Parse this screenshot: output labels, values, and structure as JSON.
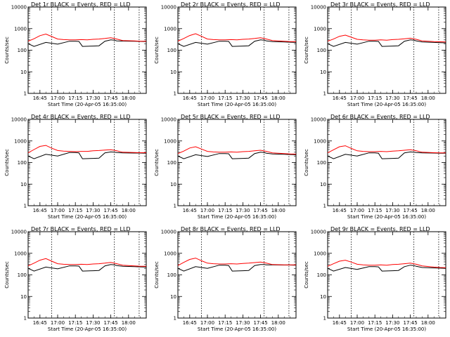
{
  "chart_data": [
    {
      "type": "line",
      "title": "Det 1r BLACK = Events, RED = LLD",
      "xlabel": "Start Time (20-Apr-05 16:35:00)",
      "ylabel": "Counts/sec",
      "yscale": "log",
      "ylim": [
        1,
        10000
      ],
      "x_ticks": [
        "16:45",
        "17:00",
        "17:15",
        "17:30",
        "17:45",
        "18:00"
      ],
      "y_ticks": [
        "1",
        "10",
        "100",
        "1000",
        "10000"
      ],
      "vlines": [
        "16:55",
        "17:48",
        "18:09"
      ],
      "series": [
        {
          "color": "#000000",
          "x_min": [
            0,
            5,
            15,
            25,
            35,
            40,
            43,
            46,
            55,
            60,
            65,
            70,
            73,
            75,
            80,
            90,
            95,
            100
          ],
          "values": [
            200,
            150,
            230,
            190,
            260,
            260,
            255,
            150,
            155,
            160,
            260,
            300,
            290,
            270,
            265,
            260,
            255,
            250
          ]
        },
        {
          "color": "#ff0000",
          "x_min": [
            0,
            5,
            10,
            15,
            20,
            25,
            30,
            35,
            40,
            45,
            50,
            55,
            60,
            65,
            70,
            75,
            80,
            90,
            95,
            100
          ],
          "values": [
            260,
            340,
            470,
            560,
            430,
            330,
            310,
            300,
            300,
            310,
            300,
            320,
            330,
            350,
            380,
            330,
            280,
            270,
            260,
            260
          ]
        }
      ]
    },
    {
      "type": "line",
      "title": "Det 2r BLACK = Events, RED = LLD",
      "xlabel": "Start Time (20-Apr-05 16:35:00)",
      "ylabel": "Counts/sec",
      "yscale": "log",
      "ylim": [
        1,
        10000
      ],
      "x_ticks": [
        "16:45",
        "17:00",
        "17:15",
        "17:30",
        "17:45",
        "18:00"
      ],
      "y_ticks": [
        "1",
        "10",
        "100",
        "1000",
        "10000"
      ],
      "vlines": [
        "16:55",
        "17:48",
        "18:09"
      ],
      "series": [
        {
          "color": "#000000",
          "x_min": [
            0,
            5,
            15,
            25,
            35,
            40,
            43,
            46,
            55,
            60,
            65,
            70,
            73,
            75,
            80,
            90,
            95,
            100
          ],
          "values": [
            200,
            150,
            230,
            190,
            260,
            260,
            255,
            150,
            155,
            160,
            260,
            300,
            290,
            270,
            250,
            240,
            235,
            230
          ]
        },
        {
          "color": "#ff0000",
          "x_min": [
            0,
            5,
            10,
            15,
            20,
            25,
            30,
            35,
            40,
            45,
            50,
            55,
            60,
            65,
            70,
            75,
            80,
            90,
            95,
            100
          ],
          "values": [
            260,
            350,
            480,
            580,
            440,
            330,
            310,
            300,
            300,
            310,
            300,
            320,
            330,
            350,
            380,
            330,
            280,
            260,
            250,
            250
          ]
        }
      ]
    },
    {
      "type": "line",
      "title": "Det 3r BLACK = Events, RED = LLD",
      "xlabel": "Start Time (20-Apr-05 16:35:00)",
      "ylabel": "Counts/sec",
      "yscale": "log",
      "ylim": [
        1,
        10000
      ],
      "x_ticks": [
        "16:45",
        "17:00",
        "17:15",
        "17:30",
        "17:45",
        "18:00"
      ],
      "y_ticks": [
        "1",
        "10",
        "100",
        "1000",
        "10000"
      ],
      "vlines": [
        "16:55",
        "17:48",
        "18:09"
      ],
      "series": [
        {
          "color": "#000000",
          "x_min": [
            0,
            5,
            15,
            25,
            35,
            40,
            43,
            46,
            55,
            60,
            65,
            70,
            73,
            75,
            80,
            90,
            95,
            100
          ],
          "values": [
            200,
            150,
            230,
            190,
            260,
            260,
            255,
            150,
            155,
            160,
            260,
            300,
            290,
            270,
            240,
            230,
            225,
            220
          ]
        },
        {
          "color": "#ff0000",
          "x_min": [
            0,
            5,
            10,
            15,
            20,
            25,
            30,
            35,
            40,
            45,
            50,
            55,
            60,
            65,
            70,
            75,
            80,
            90,
            95,
            100
          ],
          "values": [
            260,
            330,
            440,
            500,
            400,
            320,
            300,
            290,
            290,
            300,
            290,
            310,
            320,
            340,
            360,
            320,
            270,
            250,
            245,
            240
          ]
        }
      ]
    },
    {
      "type": "line",
      "title": "Det 4r BLACK = Events, RED = LLD",
      "xlabel": "Start Time (20-Apr-05 16:35:00)",
      "ylabel": "Counts/sec",
      "yscale": "log",
      "ylim": [
        1,
        10000
      ],
      "x_ticks": [
        "16:45",
        "17:00",
        "17:15",
        "17:30",
        "17:45",
        "18:00"
      ],
      "y_ticks": [
        "1",
        "10",
        "100",
        "1000",
        "10000"
      ],
      "vlines": [
        "16:55",
        "17:48",
        "18:09"
      ],
      "series": [
        {
          "color": "#000000",
          "x_min": [
            0,
            5,
            15,
            25,
            35,
            40,
            43,
            46,
            55,
            60,
            65,
            70,
            73,
            75,
            80,
            90,
            95,
            100
          ],
          "values": [
            200,
            150,
            240,
            200,
            290,
            290,
            280,
            150,
            155,
            160,
            280,
            310,
            300,
            290,
            280,
            275,
            275,
            270
          ]
        },
        {
          "color": "#ff0000",
          "x_min": [
            0,
            5,
            10,
            15,
            20,
            25,
            30,
            35,
            40,
            45,
            50,
            55,
            60,
            65,
            70,
            75,
            80,
            90,
            95,
            100
          ],
          "values": [
            280,
            400,
            560,
            620,
            460,
            360,
            340,
            330,
            320,
            330,
            330,
            350,
            360,
            380,
            390,
            350,
            300,
            290,
            285,
            285
          ]
        }
      ]
    },
    {
      "type": "line",
      "title": "Det 5r BLACK = Events, RED = LLD",
      "xlabel": "Start Time (20-Apr-05 16:35:00)",
      "ylabel": "Counts/sec",
      "yscale": "log",
      "ylim": [
        1,
        10000
      ],
      "x_ticks": [
        "16:45",
        "17:00",
        "17:15",
        "17:30",
        "17:45",
        "18:00"
      ],
      "y_ticks": [
        "1",
        "10",
        "100",
        "1000",
        "10000"
      ],
      "vlines": [
        "16:55",
        "17:48",
        "18:09"
      ],
      "series": [
        {
          "color": "#000000",
          "x_min": [
            0,
            5,
            15,
            25,
            35,
            40,
            43,
            46,
            55,
            60,
            65,
            70,
            73,
            75,
            80,
            90,
            95,
            100
          ],
          "values": [
            200,
            150,
            230,
            190,
            260,
            260,
            255,
            150,
            155,
            160,
            260,
            300,
            290,
            270,
            250,
            240,
            235,
            230
          ]
        },
        {
          "color": "#ff0000",
          "x_min": [
            0,
            5,
            10,
            15,
            20,
            25,
            30,
            35,
            40,
            45,
            50,
            55,
            60,
            65,
            70,
            75,
            80,
            90,
            95,
            100
          ],
          "values": [
            260,
            340,
            470,
            540,
            420,
            330,
            310,
            300,
            300,
            310,
            300,
            320,
            330,
            350,
            370,
            330,
            280,
            260,
            250,
            245
          ]
        }
      ]
    },
    {
      "type": "line",
      "title": "Det 6r BLACK = Events, RED = LLD",
      "xlabel": "Start Time (20-Apr-05 16:35:00)",
      "ylabel": "Counts/sec",
      "yscale": "log",
      "ylim": [
        1,
        10000
      ],
      "x_ticks": [
        "16:45",
        "17:00",
        "17:15",
        "17:30",
        "17:45",
        "18:00"
      ],
      "y_ticks": [
        "1",
        "10",
        "100",
        "1000",
        "10000"
      ],
      "vlines": [
        "16:55",
        "17:48",
        "18:09"
      ],
      "series": [
        {
          "color": "#000000",
          "x_min": [
            0,
            5,
            15,
            25,
            35,
            40,
            43,
            46,
            55,
            60,
            65,
            70,
            73,
            75,
            80,
            90,
            95,
            100
          ],
          "values": [
            200,
            150,
            240,
            200,
            280,
            280,
            270,
            150,
            155,
            160,
            280,
            310,
            300,
            290,
            280,
            275,
            270,
            270
          ]
        },
        {
          "color": "#ff0000",
          "x_min": [
            0,
            5,
            10,
            15,
            20,
            25,
            30,
            35,
            40,
            45,
            50,
            55,
            60,
            65,
            70,
            75,
            80,
            90,
            95,
            100
          ],
          "values": [
            280,
            390,
            540,
            600,
            450,
            350,
            330,
            320,
            320,
            330,
            320,
            340,
            350,
            370,
            390,
            350,
            300,
            285,
            280,
            280
          ]
        }
      ]
    },
    {
      "type": "line",
      "title": "Det 7r BLACK = Events, RED = LLD",
      "xlabel": "Start Time (20-Apr-05 16:35:00)",
      "ylabel": "Counts/sec",
      "yscale": "log",
      "ylim": [
        1,
        10000
      ],
      "x_ticks": [
        "16:45",
        "17:00",
        "17:15",
        "17:30",
        "17:45",
        "18:00"
      ],
      "y_ticks": [
        "1",
        "10",
        "100",
        "1000",
        "10000"
      ],
      "vlines": [
        "16:55",
        "17:48",
        "18:09"
      ],
      "series": [
        {
          "color": "#000000",
          "x_min": [
            0,
            5,
            15,
            25,
            35,
            40,
            43,
            46,
            55,
            60,
            65,
            70,
            73,
            75,
            80,
            90,
            95,
            100
          ],
          "values": [
            200,
            150,
            230,
            190,
            260,
            260,
            255,
            150,
            155,
            160,
            260,
            300,
            290,
            270,
            250,
            240,
            235,
            230
          ]
        },
        {
          "color": "#ff0000",
          "x_min": [
            0,
            5,
            10,
            15,
            20,
            25,
            30,
            35,
            40,
            45,
            50,
            55,
            60,
            65,
            70,
            75,
            80,
            90,
            95,
            100
          ],
          "values": [
            260,
            350,
            480,
            570,
            430,
            330,
            310,
            300,
            300,
            310,
            300,
            320,
            330,
            350,
            380,
            330,
            280,
            260,
            250,
            250
          ]
        }
      ]
    },
    {
      "type": "line",
      "title": "Det 8r BLACK = Events, RED = LLD",
      "xlabel": "Start Time (20-Apr-05 16:35:00)",
      "ylabel": "Counts/sec",
      "yscale": "log",
      "ylim": [
        1,
        10000
      ],
      "x_ticks": [
        "16:45",
        "17:00",
        "17:15",
        "17:30",
        "17:45",
        "18:00"
      ],
      "y_ticks": [
        "1",
        "10",
        "100",
        "1000",
        "10000"
      ],
      "vlines": [
        "16:55",
        "17:48",
        "18:09"
      ],
      "series": [
        {
          "color": "#000000",
          "x_min": [
            0,
            5,
            15,
            25,
            35,
            40,
            43,
            46,
            55,
            60,
            65,
            70,
            73,
            75,
            80,
            90,
            95,
            100
          ],
          "values": [
            200,
            150,
            240,
            200,
            280,
            280,
            270,
            150,
            155,
            160,
            270,
            300,
            300,
            290,
            290,
            285,
            285,
            280
          ]
        },
        {
          "color": "#ff0000",
          "x_min": [
            0,
            5,
            10,
            15,
            20,
            25,
            30,
            35,
            40,
            45,
            50,
            55,
            60,
            65,
            70,
            75,
            80,
            90,
            95,
            100
          ],
          "values": [
            270,
            380,
            520,
            600,
            450,
            350,
            330,
            320,
            320,
            330,
            320,
            340,
            350,
            370,
            390,
            350,
            300,
            290,
            290,
            290
          ]
        }
      ]
    },
    {
      "type": "line",
      "title": "Det 9r BLACK = Events, RED = LLD",
      "xlabel": "Start Time (20-Apr-05 16:35:00)",
      "ylabel": "Counts/sec",
      "yscale": "log",
      "ylim": [
        1,
        10000
      ],
      "x_ticks": [
        "16:45",
        "17:00",
        "17:15",
        "17:30",
        "17:45",
        "18:00"
      ],
      "y_ticks": [
        "1",
        "10",
        "100",
        "1000",
        "10000"
      ],
      "vlines": [
        "16:55",
        "17:48",
        "18:09"
      ],
      "series": [
        {
          "color": "#000000",
          "x_min": [
            0,
            5,
            15,
            25,
            35,
            40,
            43,
            46,
            55,
            60,
            65,
            70,
            73,
            75,
            80,
            90,
            95,
            100
          ],
          "values": [
            200,
            150,
            220,
            180,
            240,
            240,
            235,
            150,
            155,
            160,
            240,
            280,
            270,
            250,
            220,
            210,
            205,
            200
          ]
        },
        {
          "color": "#ff0000",
          "x_min": [
            0,
            5,
            10,
            15,
            20,
            25,
            30,
            35,
            40,
            45,
            50,
            55,
            60,
            65,
            70,
            75,
            80,
            90,
            95,
            100
          ],
          "values": [
            250,
            330,
            430,
            480,
            390,
            310,
            290,
            280,
            280,
            290,
            280,
            300,
            310,
            330,
            350,
            310,
            260,
            230,
            220,
            215
          ]
        }
      ]
    }
  ]
}
